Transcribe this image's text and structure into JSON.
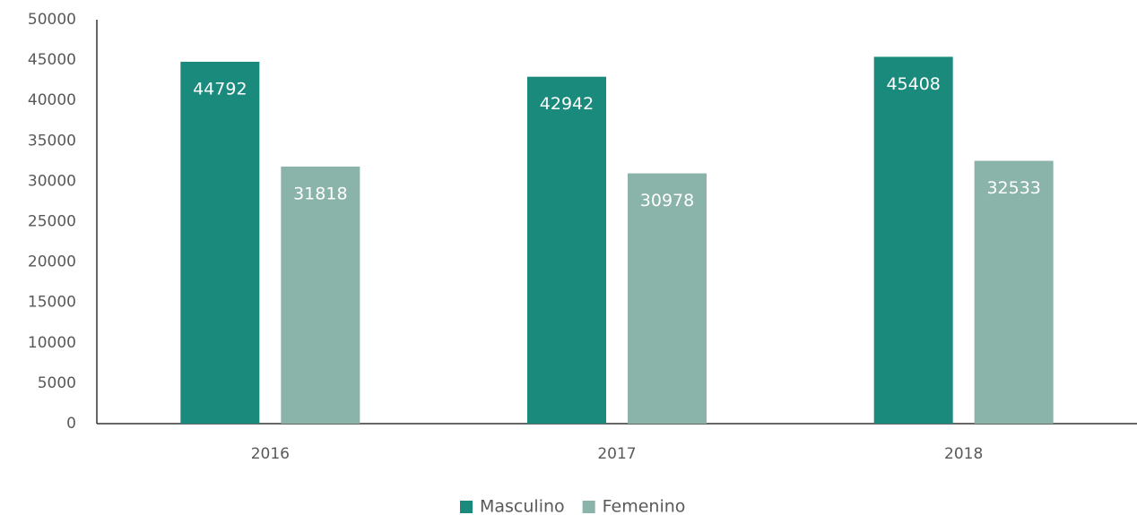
{
  "chart_data": {
    "type": "bar",
    "categories": [
      "2016",
      "2017",
      "2018"
    ],
    "series": [
      {
        "name": "Masculino",
        "color": "#1a8a7c",
        "values": [
          44792,
          42942,
          45408
        ]
      },
      {
        "name": "Femenino",
        "color": "#8ab3a9",
        "values": [
          31818,
          30978,
          32533
        ]
      }
    ],
    "ylim": [
      0,
      50000
    ],
    "yticks": [
      0,
      5000,
      10000,
      15000,
      20000,
      25000,
      30000,
      35000,
      40000,
      45000,
      50000
    ],
    "grid": false,
    "legend": "bottom"
  }
}
